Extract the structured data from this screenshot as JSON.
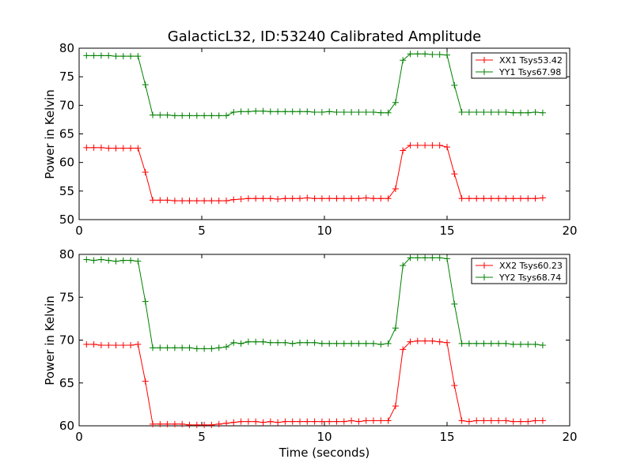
{
  "chart_data": [
    {
      "type": "line",
      "title": "GalacticL32, ID:53240 Calibrated Amplitude",
      "xlabel": "",
      "ylabel": "Power in Kelvin",
      "xlim": [
        0,
        20
      ],
      "ylim": [
        50,
        80
      ],
      "x_ticks": [
        "0",
        "5",
        "10",
        "15",
        "20"
      ],
      "y_ticks": [
        "50",
        "55",
        "60",
        "65",
        "70",
        "75",
        "80"
      ],
      "legend_position": "top-right",
      "grid": false,
      "x": [
        0.3,
        0.6,
        0.9,
        1.2,
        1.5,
        1.8,
        2.1,
        2.4,
        2.7,
        3.0,
        3.3,
        3.6,
        3.9,
        4.2,
        4.5,
        4.8,
        5.1,
        5.4,
        5.7,
        6.0,
        6.3,
        6.6,
        6.9,
        7.2,
        7.5,
        7.8,
        8.1,
        8.4,
        8.7,
        9.0,
        9.3,
        9.6,
        9.9,
        10.2,
        10.5,
        10.8,
        11.1,
        11.4,
        11.7,
        12.0,
        12.3,
        12.6,
        12.9,
        13.2,
        13.5,
        13.8,
        14.1,
        14.4,
        14.7,
        15.0,
        15.3,
        15.6,
        15.9,
        16.2,
        16.5,
        16.8,
        17.1,
        17.4,
        17.7,
        18.0,
        18.3,
        18.6,
        18.9
      ],
      "series": [
        {
          "name": "XX1 Tsys53.42",
          "color": "#ff0000",
          "values": [
            62.6,
            62.6,
            62.6,
            62.5,
            62.5,
            62.5,
            62.5,
            62.5,
            58.3,
            53.4,
            53.4,
            53.4,
            53.3,
            53.3,
            53.3,
            53.3,
            53.3,
            53.3,
            53.3,
            53.3,
            53.5,
            53.6,
            53.7,
            53.7,
            53.7,
            53.7,
            53.6,
            53.7,
            53.7,
            53.7,
            53.8,
            53.7,
            53.7,
            53.7,
            53.7,
            53.7,
            53.7,
            53.7,
            53.8,
            53.7,
            53.7,
            53.7,
            55.4,
            62.1,
            63.0,
            63.0,
            63.0,
            63.0,
            63.0,
            62.7,
            58.0,
            53.7,
            53.7,
            53.7,
            53.7,
            53.7,
            53.7,
            53.7,
            53.7,
            53.7,
            53.7,
            53.7,
            53.8
          ]
        },
        {
          "name": "YY1 Tsys67.98",
          "color": "#008000",
          "values": [
            78.7,
            78.7,
            78.7,
            78.7,
            78.6,
            78.6,
            78.6,
            78.6,
            73.6,
            68.3,
            68.3,
            68.3,
            68.2,
            68.2,
            68.2,
            68.2,
            68.2,
            68.2,
            68.2,
            68.2,
            68.8,
            68.9,
            68.9,
            69.0,
            69.0,
            68.9,
            68.9,
            68.9,
            68.9,
            68.9,
            68.9,
            68.8,
            68.8,
            68.9,
            68.8,
            68.8,
            68.8,
            68.8,
            68.8,
            68.8,
            68.7,
            68.7,
            70.5,
            77.9,
            79.0,
            79.0,
            79.0,
            78.9,
            78.9,
            78.8,
            73.5,
            68.8,
            68.8,
            68.8,
            68.8,
            68.8,
            68.8,
            68.8,
            68.7,
            68.7,
            68.7,
            68.8,
            68.7
          ]
        }
      ]
    },
    {
      "type": "line",
      "title": "",
      "xlabel": "Time (seconds)",
      "ylabel": "Power in Kelvin",
      "xlim": [
        0,
        20
      ],
      "ylim": [
        60,
        80
      ],
      "x_ticks": [
        "0",
        "5",
        "10",
        "15",
        "20"
      ],
      "y_ticks": [
        "60",
        "65",
        "70",
        "75",
        "80"
      ],
      "legend_position": "top-right",
      "grid": false,
      "x": [
        0.3,
        0.6,
        0.9,
        1.2,
        1.5,
        1.8,
        2.1,
        2.4,
        2.7,
        3.0,
        3.3,
        3.6,
        3.9,
        4.2,
        4.5,
        4.8,
        5.1,
        5.4,
        5.7,
        6.0,
        6.3,
        6.6,
        6.9,
        7.2,
        7.5,
        7.8,
        8.1,
        8.4,
        8.7,
        9.0,
        9.3,
        9.6,
        9.9,
        10.2,
        10.5,
        10.8,
        11.1,
        11.4,
        11.7,
        12.0,
        12.3,
        12.6,
        12.9,
        13.2,
        13.5,
        13.8,
        14.1,
        14.4,
        14.7,
        15.0,
        15.3,
        15.6,
        15.9,
        16.2,
        16.5,
        16.8,
        17.1,
        17.4,
        17.7,
        18.0,
        18.3,
        18.6,
        18.9
      ],
      "series": [
        {
          "name": "XX2 Tsys60.23",
          "color": "#ff0000",
          "values": [
            69.5,
            69.5,
            69.4,
            69.4,
            69.4,
            69.4,
            69.4,
            69.5,
            65.2,
            60.2,
            60.2,
            60.2,
            60.2,
            60.2,
            60.1,
            60.1,
            60.1,
            60.1,
            60.2,
            60.3,
            60.4,
            60.5,
            60.5,
            60.5,
            60.4,
            60.5,
            60.4,
            60.5,
            60.5,
            60.5,
            60.5,
            60.5,
            60.5,
            60.5,
            60.5,
            60.5,
            60.6,
            60.5,
            60.6,
            60.6,
            60.6,
            60.6,
            62.3,
            68.9,
            69.8,
            69.9,
            69.9,
            69.9,
            69.8,
            69.7,
            64.7,
            60.6,
            60.5,
            60.6,
            60.6,
            60.6,
            60.6,
            60.6,
            60.5,
            60.5,
            60.5,
            60.6,
            60.6
          ]
        },
        {
          "name": "YY2 Tsys68.74",
          "color": "#008000",
          "values": [
            79.4,
            79.3,
            79.4,
            79.3,
            79.2,
            79.3,
            79.3,
            79.2,
            74.5,
            69.1,
            69.1,
            69.1,
            69.1,
            69.1,
            69.1,
            69.0,
            69.0,
            69.0,
            69.1,
            69.2,
            69.7,
            69.6,
            69.8,
            69.8,
            69.8,
            69.7,
            69.7,
            69.7,
            69.6,
            69.7,
            69.7,
            69.7,
            69.6,
            69.6,
            69.6,
            69.6,
            69.6,
            69.6,
            69.6,
            69.6,
            69.5,
            69.6,
            71.4,
            78.7,
            79.6,
            79.6,
            79.6,
            79.6,
            79.6,
            79.5,
            74.2,
            69.6,
            69.6,
            69.6,
            69.6,
            69.6,
            69.6,
            69.6,
            69.5,
            69.5,
            69.5,
            69.5,
            69.4
          ]
        }
      ]
    }
  ]
}
